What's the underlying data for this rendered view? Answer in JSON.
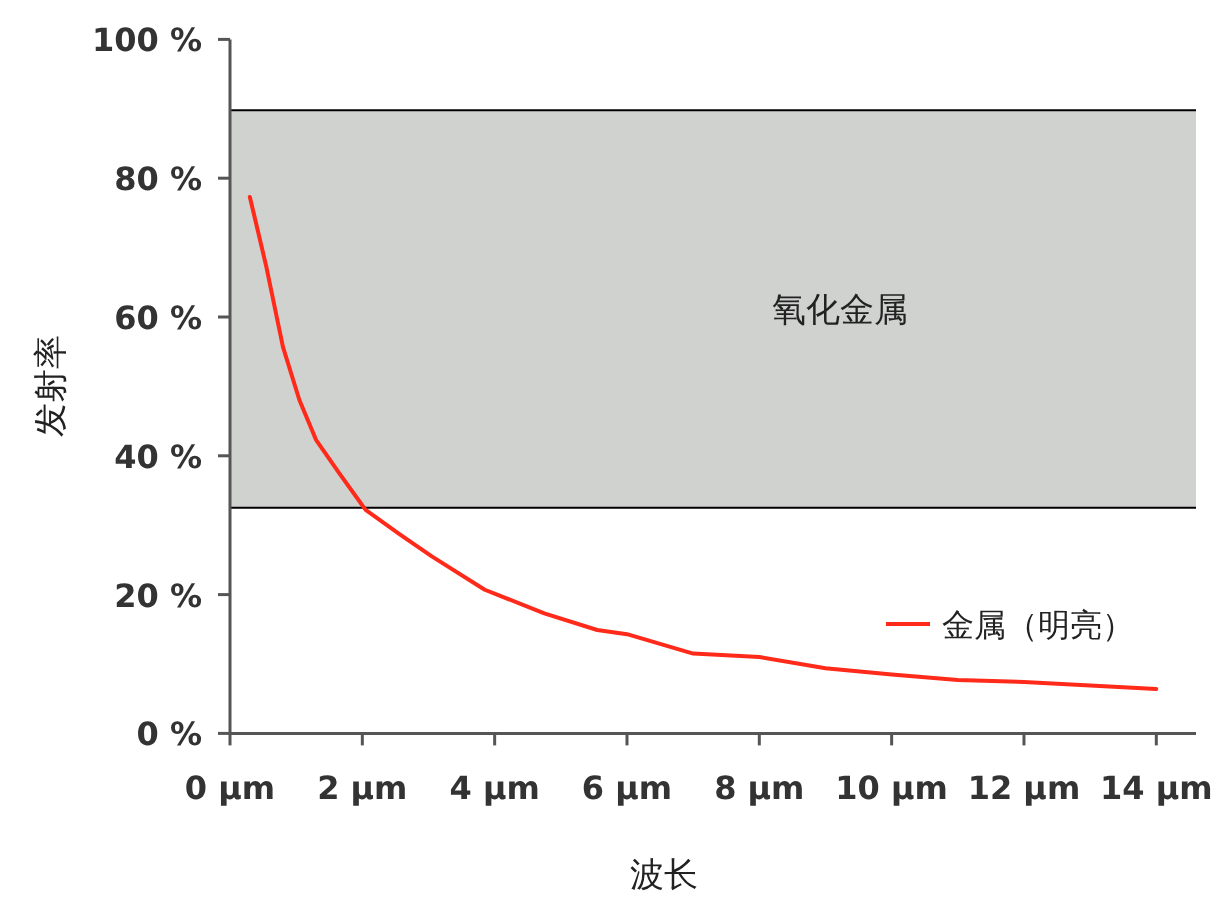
{
  "chart_data": {
    "type": "line",
    "xlabel": "波长",
    "ylabel": "发射率",
    "x": [
      0.3,
      0.55,
      0.8,
      1.05,
      1.3,
      1.65,
      2.05,
      2.55,
      3.05,
      3.85,
      4.75,
      5.55,
      6.0,
      7.0,
      8.0,
      9.0,
      10.0,
      11.0,
      12.0,
      13.0,
      14.0
    ],
    "series": [
      {
        "name": "金属（明亮）",
        "color": "#ff2a1a",
        "values": [
          77.3,
          67.2,
          55.7,
          48.0,
          42.3,
          37.5,
          32.2,
          28.8,
          25.5,
          20.7,
          17.3,
          14.9,
          14.3,
          11.5,
          11.0,
          9.4,
          8.5,
          7.7,
          7.4,
          6.9,
          6.4
        ]
      }
    ],
    "xlim": [
      0,
      14.6
    ],
    "ylim": [
      0,
      100
    ],
    "xticks": [
      {
        "value": 0,
        "label": "0 µm"
      },
      {
        "value": 2,
        "label": "2 µm"
      },
      {
        "value": 4,
        "label": "4 µm"
      },
      {
        "value": 6,
        "label": "6 µm"
      },
      {
        "value": 8,
        "label": "8 µm"
      },
      {
        "value": 10,
        "label": "10 µm"
      },
      {
        "value": 12,
        "label": "12 µm"
      },
      {
        "value": 14,
        "label": "14 µm"
      }
    ],
    "yticks": [
      {
        "value": 0,
        "label": "0 %"
      },
      {
        "value": 20,
        "label": "20 %"
      },
      {
        "value": 40,
        "label": "40 %"
      },
      {
        "value": 60,
        "label": "60 %"
      },
      {
        "value": 80,
        "label": "80 %"
      },
      {
        "value": 100,
        "label": "100 %"
      }
    ],
    "bands": [
      {
        "axis": "y",
        "from": 32.5,
        "to": 89.8,
        "label": "氧化金属",
        "color": "#d0d2d0"
      }
    ],
    "ref_lines": [
      {
        "axis": "y",
        "value": 32.5,
        "color": "#000000"
      },
      {
        "axis": "y",
        "value": 89.8,
        "color": "#000000"
      }
    ],
    "legend": "right",
    "marker": "none",
    "line_style": "solid",
    "grid": false
  }
}
